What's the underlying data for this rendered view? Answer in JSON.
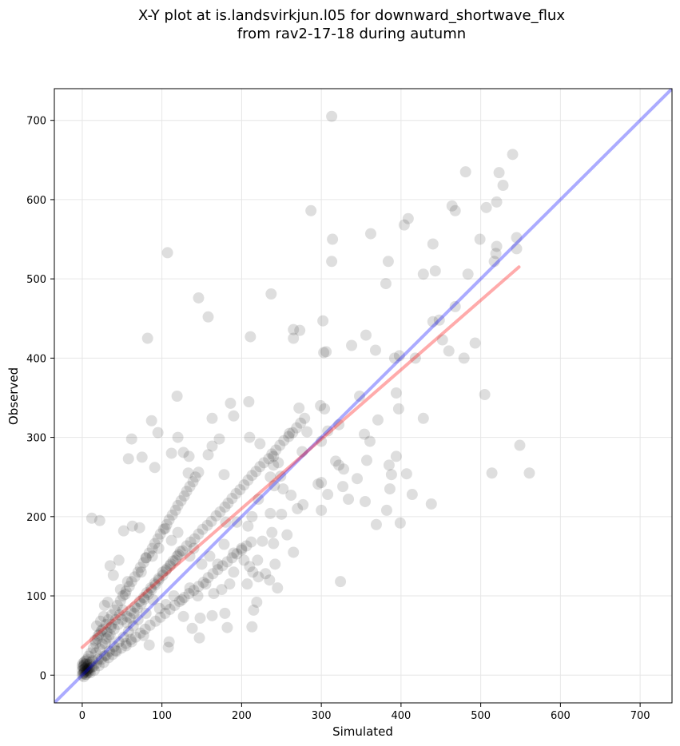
{
  "chart_data": {
    "type": "scatter",
    "title": "X-Y plot at is.landsvirkjun.l05 for downward_shortwave_flux",
    "subtitle": "from rav2-17-18 during autumn",
    "xlabel": "Simulated",
    "ylabel": "Observed",
    "xlim": [
      -35,
      740
    ],
    "ylim": [
      -35,
      740
    ],
    "xticks": [
      0,
      100,
      200,
      300,
      400,
      500,
      600,
      700
    ],
    "yticks": [
      0,
      100,
      200,
      300,
      400,
      500,
      600,
      700
    ],
    "grid": true,
    "colors": {
      "points": "#000000",
      "identity_line": "#0000ff",
      "fit_line": "#ff0000"
    },
    "reference_lines": [
      {
        "kind": "identity",
        "x": [
          -35,
          740
        ],
        "y": [
          -35,
          740
        ]
      },
      {
        "kind": "fit",
        "x": [
          0,
          548
        ],
        "y": [
          35,
          515
        ]
      }
    ],
    "points": [
      [
        313,
        705
      ],
      [
        481,
        635
      ],
      [
        540,
        657
      ],
      [
        523,
        634
      ],
      [
        528,
        618
      ],
      [
        520,
        597
      ],
      [
        464,
        592
      ],
      [
        468,
        586
      ],
      [
        507,
        590
      ],
      [
        287,
        586
      ],
      [
        409,
        576
      ],
      [
        404,
        568
      ],
      [
        362,
        557
      ],
      [
        499,
        550
      ],
      [
        545,
        552
      ],
      [
        314,
        550
      ],
      [
        440,
        544
      ],
      [
        520,
        541
      ],
      [
        545,
        538
      ],
      [
        519,
        532
      ],
      [
        107,
        533
      ],
      [
        384,
        522
      ],
      [
        313,
        522
      ],
      [
        517,
        522
      ],
      [
        443,
        510
      ],
      [
        428,
        506
      ],
      [
        484,
        506
      ],
      [
        381,
        494
      ],
      [
        237,
        481
      ],
      [
        146,
        476
      ],
      [
        468,
        465
      ],
      [
        440,
        446
      ],
      [
        448,
        448
      ],
      [
        302,
        447
      ],
      [
        158,
        452
      ],
      [
        265,
        436
      ],
      [
        273,
        435
      ],
      [
        356,
        429
      ],
      [
        82,
        425
      ],
      [
        211,
        427
      ],
      [
        265,
        425
      ],
      [
        338,
        416
      ],
      [
        452,
        423
      ],
      [
        493,
        419
      ],
      [
        368,
        410
      ],
      [
        306,
        408
      ],
      [
        303,
        407
      ],
      [
        460,
        409
      ],
      [
        398,
        403
      ],
      [
        392,
        400
      ],
      [
        418,
        400
      ],
      [
        479,
        400
      ],
      [
        505,
        354
      ],
      [
        348,
        352
      ],
      [
        119,
        352
      ],
      [
        394,
        356
      ],
      [
        209,
        345
      ],
      [
        186,
        343
      ],
      [
        272,
        337
      ],
      [
        299,
        340
      ],
      [
        304,
        336
      ],
      [
        397,
        336
      ],
      [
        371,
        322
      ],
      [
        87,
        321
      ],
      [
        190,
        327
      ],
      [
        163,
        324
      ],
      [
        428,
        324
      ],
      [
        322,
        316
      ],
      [
        308,
        308
      ],
      [
        95,
        306
      ],
      [
        62,
        298
      ],
      [
        260,
        305
      ],
      [
        282,
        307
      ],
      [
        354,
        304
      ],
      [
        361,
        295
      ],
      [
        120,
        300
      ],
      [
        172,
        298
      ],
      [
        210,
        300
      ],
      [
        223,
        292
      ],
      [
        240,
        265
      ],
      [
        300,
        295
      ],
      [
        318,
        270
      ],
      [
        91,
        262
      ],
      [
        112,
        280
      ],
      [
        127,
        281
      ],
      [
        134,
        276
      ],
      [
        163,
        289
      ],
      [
        158,
        278
      ],
      [
        328,
        260
      ],
      [
        322,
        265
      ],
      [
        133,
        255
      ],
      [
        58,
        273
      ],
      [
        75,
        275
      ],
      [
        178,
        253
      ],
      [
        236,
        250
      ],
      [
        246,
        268
      ],
      [
        249,
        251
      ],
      [
        240,
        276
      ],
      [
        300,
        243
      ],
      [
        345,
        248
      ],
      [
        357,
        271
      ],
      [
        385,
        265
      ],
      [
        394,
        276
      ],
      [
        388,
        253
      ],
      [
        407,
        254
      ],
      [
        561,
        255
      ],
      [
        514,
        255
      ],
      [
        549,
        290
      ],
      [
        296,
        241
      ],
      [
        327,
        238
      ],
      [
        386,
        235
      ],
      [
        414,
        228
      ],
      [
        438,
        216
      ],
      [
        308,
        228
      ],
      [
        334,
        222
      ],
      [
        355,
        219
      ],
      [
        399,
        192
      ],
      [
        382,
        208
      ],
      [
        369,
        190
      ],
      [
        324,
        118
      ],
      [
        300,
        208
      ],
      [
        276,
        282
      ],
      [
        252,
        235
      ],
      [
        241,
        239
      ],
      [
        262,
        227
      ],
      [
        277,
        215
      ],
      [
        270,
        210
      ],
      [
        236,
        204
      ],
      [
        221,
        222
      ],
      [
        250,
        203
      ],
      [
        213,
        200
      ],
      [
        194,
        193
      ],
      [
        180,
        193
      ],
      [
        226,
        169
      ],
      [
        208,
        188
      ],
      [
        238,
        180
      ],
      [
        257,
        177
      ],
      [
        240,
        166
      ],
      [
        265,
        155
      ],
      [
        242,
        140
      ],
      [
        214,
        130
      ],
      [
        221,
        124
      ],
      [
        245,
        110
      ],
      [
        207,
        115
      ],
      [
        219,
        92
      ],
      [
        215,
        82
      ],
      [
        179,
        78
      ],
      [
        182,
        60
      ],
      [
        213,
        61
      ],
      [
        163,
        75
      ],
      [
        148,
        72
      ],
      [
        127,
        74
      ],
      [
        138,
        59
      ],
      [
        147,
        47
      ],
      [
        109,
        42
      ],
      [
        108,
        35
      ],
      [
        84,
        38
      ],
      [
        62,
        42
      ],
      [
        77,
        50
      ],
      [
        55,
        37
      ],
      [
        42,
        31
      ],
      [
        30,
        25
      ],
      [
        20,
        20
      ],
      [
        14,
        11
      ],
      [
        6,
        7
      ],
      [
        3,
        4
      ],
      [
        1,
        2
      ],
      [
        0,
        0
      ],
      [
        2,
        -2
      ],
      [
        5,
        14
      ],
      [
        9,
        5
      ],
      [
        13,
        18
      ],
      [
        17,
        28
      ],
      [
        22,
        33
      ],
      [
        25,
        39
      ],
      [
        30,
        46
      ],
      [
        35,
        51
      ],
      [
        40,
        58
      ],
      [
        45,
        64
      ],
      [
        50,
        70
      ],
      [
        56,
        74
      ],
      [
        61,
        81
      ],
      [
        66,
        86
      ],
      [
        72,
        93
      ],
      [
        77,
        98
      ],
      [
        81,
        104
      ],
      [
        86,
        110
      ],
      [
        91,
        116
      ],
      [
        96,
        122
      ],
      [
        101,
        130
      ],
      [
        106,
        134
      ],
      [
        111,
        140
      ],
      [
        117,
        145
      ],
      [
        121,
        152
      ],
      [
        126,
        157
      ],
      [
        131,
        163
      ],
      [
        136,
        168
      ],
      [
        141,
        172
      ],
      [
        146,
        178
      ],
      [
        151,
        184
      ],
      [
        157,
        189
      ],
      [
        162,
        194
      ],
      [
        168,
        201
      ],
      [
        173,
        206
      ],
      [
        179,
        212
      ],
      [
        183,
        217
      ],
      [
        188,
        223
      ],
      [
        193,
        229
      ],
      [
        198,
        234
      ],
      [
        203,
        240
      ],
      [
        208,
        246
      ],
      [
        213,
        252
      ],
      [
        218,
        257
      ],
      [
        223,
        263
      ],
      [
        228,
        268
      ],
      [
        234,
        273
      ],
      [
        238,
        279
      ],
      [
        243,
        284
      ],
      [
        248,
        290
      ],
      [
        253,
        296
      ],
      [
        259,
        301
      ],
      [
        264,
        306
      ],
      [
        269,
        312
      ],
      [
        274,
        318
      ],
      [
        279,
        324
      ],
      [
        28,
        88
      ],
      [
        32,
        92
      ],
      [
        48,
        108
      ],
      [
        54,
        102
      ],
      [
        57,
        118
      ],
      [
        12,
        198
      ],
      [
        22,
        195
      ],
      [
        35,
        138
      ],
      [
        39,
        126
      ],
      [
        46,
        145
      ],
      [
        52,
        182
      ],
      [
        63,
        188
      ],
      [
        72,
        186
      ],
      [
        74,
        130
      ],
      [
        80,
        148
      ],
      [
        88,
        150
      ],
      [
        96,
        160
      ],
      [
        104,
        185
      ],
      [
        112,
        170
      ],
      [
        120,
        180
      ],
      [
        135,
        150
      ],
      [
        140,
        160
      ],
      [
        150,
        140
      ],
      [
        160,
        150
      ],
      [
        170,
        140
      ],
      [
        178,
        165
      ],
      [
        190,
        154
      ],
      [
        200,
        160
      ],
      [
        203,
        145
      ],
      [
        210,
        137
      ],
      [
        220,
        145
      ],
      [
        230,
        128
      ],
      [
        235,
        120
      ],
      [
        190,
        130
      ],
      [
        185,
        115
      ],
      [
        175,
        108
      ],
      [
        165,
        103
      ],
      [
        155,
        115
      ],
      [
        145,
        100
      ],
      [
        135,
        110
      ],
      [
        125,
        95
      ],
      [
        115,
        100
      ],
      [
        105,
        89
      ],
      [
        97,
        84
      ],
      [
        89,
        95
      ],
      [
        80,
        78
      ],
      [
        70,
        70
      ],
      [
        64,
        62
      ],
      [
        58,
        55
      ],
      [
        52,
        48
      ],
      [
        46,
        42
      ],
      [
        40,
        36
      ],
      [
        34,
        30
      ],
      [
        28,
        24
      ],
      [
        24,
        20
      ],
      [
        18,
        15
      ],
      [
        12,
        10
      ],
      [
        8,
        8
      ],
      [
        10,
        3
      ],
      [
        15,
        6
      ],
      [
        21,
        12
      ],
      [
        27,
        16
      ],
      [
        33,
        22
      ],
      [
        38,
        26
      ],
      [
        43,
        30
      ],
      [
        49,
        34
      ],
      [
        55,
        40
      ],
      [
        61,
        45
      ],
      [
        67,
        48
      ],
      [
        73,
        53
      ],
      [
        79,
        58
      ],
      [
        85,
        63
      ],
      [
        92,
        68
      ],
      [
        98,
        73
      ],
      [
        104,
        78
      ],
      [
        110,
        83
      ],
      [
        116,
        88
      ],
      [
        122,
        93
      ],
      [
        128,
        98
      ],
      [
        134,
        103
      ],
      [
        140,
        107
      ],
      [
        146,
        112
      ],
      [
        152,
        117
      ],
      [
        158,
        123
      ],
      [
        164,
        128
      ],
      [
        170,
        133
      ],
      [
        176,
        138
      ],
      [
        182,
        143
      ],
      [
        188,
        148
      ],
      [
        194,
        153
      ],
      [
        200,
        158
      ],
      [
        206,
        163
      ],
      [
        212,
        168
      ],
      [
        3,
        14
      ],
      [
        5,
        18
      ],
      [
        8,
        24
      ],
      [
        11,
        28
      ],
      [
        14,
        34
      ],
      [
        17,
        40
      ],
      [
        19,
        46
      ],
      [
        22,
        52
      ],
      [
        26,
        58
      ],
      [
        30,
        64
      ],
      [
        33,
        70
      ],
      [
        37,
        76
      ],
      [
        41,
        82
      ],
      [
        44,
        88
      ],
      [
        48,
        94
      ],
      [
        51,
        100
      ],
      [
        55,
        106
      ],
      [
        59,
        112
      ],
      [
        62,
        118
      ],
      [
        66,
        124
      ],
      [
        70,
        130
      ],
      [
        73,
        136
      ],
      [
        77,
        142
      ],
      [
        80,
        148
      ],
      [
        84,
        154
      ],
      [
        88,
        160
      ],
      [
        91,
        166
      ],
      [
        95,
        172
      ],
      [
        98,
        178
      ],
      [
        102,
        184
      ],
      [
        106,
        190
      ],
      [
        109,
        196
      ],
      [
        113,
        202
      ],
      [
        117,
        208
      ],
      [
        120,
        214
      ],
      [
        124,
        220
      ],
      [
        128,
        226
      ],
      [
        131,
        232
      ],
      [
        135,
        238
      ],
      [
        139,
        244
      ],
      [
        142,
        250
      ],
      [
        146,
        256
      ],
      [
        0,
        6
      ],
      [
        1,
        10
      ],
      [
        2,
        3
      ],
      [
        3,
        8
      ],
      [
        4,
        1
      ],
      [
        5,
        5
      ],
      [
        6,
        11
      ],
      [
        7,
        3
      ],
      [
        8,
        14
      ],
      [
        9,
        9
      ],
      [
        10,
        16
      ],
      [
        2,
        12
      ],
      [
        4,
        9
      ],
      [
        1,
        15
      ],
      [
        3,
        17
      ],
      [
        6,
        20
      ],
      [
        0,
        12
      ],
      [
        2,
        7
      ],
      [
        5,
        1
      ],
      [
        7,
        6
      ],
      [
        18,
        62
      ],
      [
        23,
        68
      ],
      [
        27,
        74
      ],
      [
        31,
        54
      ],
      [
        36,
        60
      ],
      [
        16,
        44
      ],
      [
        20,
        50
      ],
      [
        24,
        56
      ],
      [
        29,
        40
      ],
      [
        33,
        48
      ],
      [
        37,
        64
      ],
      [
        42,
        70
      ],
      [
        47,
        76
      ],
      [
        51,
        82
      ],
      [
        56,
        66
      ],
      [
        60,
        72
      ],
      [
        65,
        78
      ],
      [
        69,
        84
      ],
      [
        74,
        90
      ],
      [
        78,
        96
      ],
      [
        83,
        102
      ],
      [
        87,
        108
      ],
      [
        92,
        114
      ],
      [
        96,
        120
      ],
      [
        101,
        126
      ],
      [
        105,
        132
      ],
      [
        110,
        138
      ],
      [
        114,
        144
      ],
      [
        119,
        150
      ],
      [
        123,
        156
      ]
    ]
  }
}
